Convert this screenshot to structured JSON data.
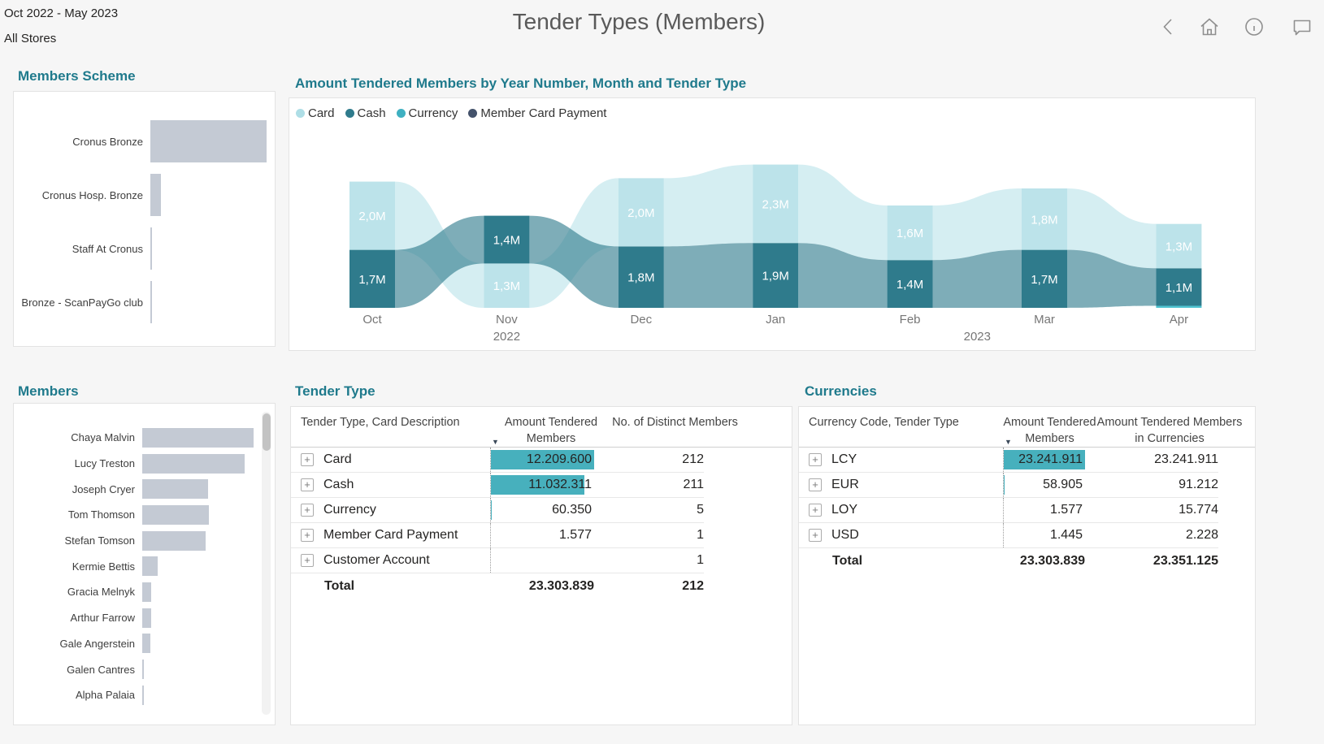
{
  "header": {
    "date_range": "Oct 2022 - May 2023",
    "store_filter": "All Stores",
    "title": "Tender Types (Members)"
  },
  "icons": {
    "expand": "+",
    "sort_desc": "▼"
  },
  "colors": {
    "accent_teal": "#1f7a8c",
    "databar_teal": "#47b0bd",
    "gray_bar": "#c4cad4"
  },
  "members_scheme": {
    "title": "Members Scheme",
    "bars": [
      {
        "label": "Cronus Bronze",
        "pct": 100
      },
      {
        "label": "Cronus Hosp. Bronze",
        "pct": 9
      },
      {
        "label": "Staff At Cronus",
        "pct": 1.5
      },
      {
        "label": "Bronze - ScanPayGo club",
        "pct": 1.5
      }
    ]
  },
  "members": {
    "title": "Members",
    "bars": [
      {
        "label": "Chaya Malvin",
        "pct": 100
      },
      {
        "label": "Lucy Treston",
        "pct": 92
      },
      {
        "label": "Joseph Cryer",
        "pct": 59
      },
      {
        "label": "Tom Thomson",
        "pct": 60
      },
      {
        "label": "Stefan Tomson",
        "pct": 57
      },
      {
        "label": "Kermie Bettis",
        "pct": 14
      },
      {
        "label": "Gracia Melnyk",
        "pct": 8
      },
      {
        "label": "Arthur Farrow",
        "pct": 8
      },
      {
        "label": "Gale Angerstein",
        "pct": 7
      },
      {
        "label": "Galen Cantres",
        "pct": 1.2
      },
      {
        "label": "Alpha Palaia",
        "pct": 1.2
      }
    ]
  },
  "chart": {
    "title": "Amount Tendered Members by Year Number, Month and Tender Type",
    "legend": [
      {
        "label": "Card",
        "color": "#aedee6"
      },
      {
        "label": "Cash",
        "color": "#2f7b8c"
      },
      {
        "label": "Currency",
        "color": "#3fb0c1"
      },
      {
        "label": "Member Card Payment",
        "color": "#44526b"
      }
    ]
  },
  "chart_data": {
    "type": "area",
    "subtype": "ribbon",
    "title": "Amount Tendered Members by Year Number, Month and Tender Type",
    "xlabel": "Year Number, Month",
    "ylabel": "Amount Tendered Members",
    "unit": "M",
    "categories": [
      "Oct",
      "Nov",
      "Dec",
      "Jan",
      "Feb",
      "Mar",
      "Apr"
    ],
    "year_groups": [
      {
        "label": "2022",
        "month_indexes": [
          0,
          1,
          2
        ]
      },
      {
        "label": "2023",
        "month_indexes": [
          3,
          4,
          5,
          6
        ]
      }
    ],
    "series": [
      {
        "name": "Card",
        "color": "#bce3ea",
        "values": [
          2.0,
          1.3,
          2.0,
          2.3,
          1.6,
          1.8,
          1.3
        ]
      },
      {
        "name": "Cash",
        "color": "#2f7b8c",
        "values": [
          1.7,
          1.4,
          1.8,
          1.9,
          1.4,
          1.7,
          1.1
        ]
      },
      {
        "name": "Currency",
        "color": "#4fc3d0",
        "values": [
          0,
          0,
          0,
          0,
          0,
          0,
          0.06
        ]
      },
      {
        "name": "Member Card Payment",
        "color": "#44526b",
        "values": [
          0,
          0,
          0,
          0,
          0,
          0,
          0
        ]
      }
    ],
    "data_labels": {
      "Card": [
        "2,0M",
        "1,3M",
        "2,0M",
        "2,3M",
        "1,6M",
        "1,8M",
        "1,3M"
      ],
      "Cash": [
        "1,7M",
        "1,4M",
        "1,8M",
        "1,9M",
        "1,4M",
        "1,7M",
        "1,1M"
      ]
    }
  },
  "tender_table": {
    "title": "Tender Type",
    "columns": [
      "Tender Type, Card Description",
      "Amount Tendered Members",
      "No. of Distinct Members"
    ],
    "rows": [
      {
        "label": "Card",
        "amount": "12.209.600",
        "amount_pct": 100,
        "distinct": "212"
      },
      {
        "label": "Cash",
        "amount": "11.032.311",
        "amount_pct": 90.4,
        "distinct": "211"
      },
      {
        "label": "Currency",
        "amount": "60.350",
        "amount_pct": 0.5,
        "distinct": "5"
      },
      {
        "label": "Member Card Payment",
        "amount": "1.577",
        "amount_pct": 0,
        "distinct": "1"
      },
      {
        "label": "Customer Account",
        "amount": "",
        "amount_pct": 0,
        "distinct": "1"
      }
    ],
    "total": {
      "label": "Total",
      "amount": "23.303.839",
      "distinct": "212"
    }
  },
  "currency_table": {
    "title": "Currencies",
    "columns": [
      "Currency Code, Tender Type",
      "Amount Tendered Members",
      "Amount Tendered Members in Currencies"
    ],
    "rows": [
      {
        "label": "LCY",
        "amount": "23.241.911",
        "amount_pct": 100,
        "in_currency": "23.241.911"
      },
      {
        "label": "EUR",
        "amount": "58.905",
        "amount_pct": 0.25,
        "in_currency": "91.212"
      },
      {
        "label": "LOY",
        "amount": "1.577",
        "amount_pct": 0,
        "in_currency": "15.774"
      },
      {
        "label": "USD",
        "amount": "1.445",
        "amount_pct": 0,
        "in_currency": "2.228"
      }
    ],
    "total": {
      "label": "Total",
      "amount": "23.303.839",
      "in_currency": "23.351.125"
    }
  }
}
